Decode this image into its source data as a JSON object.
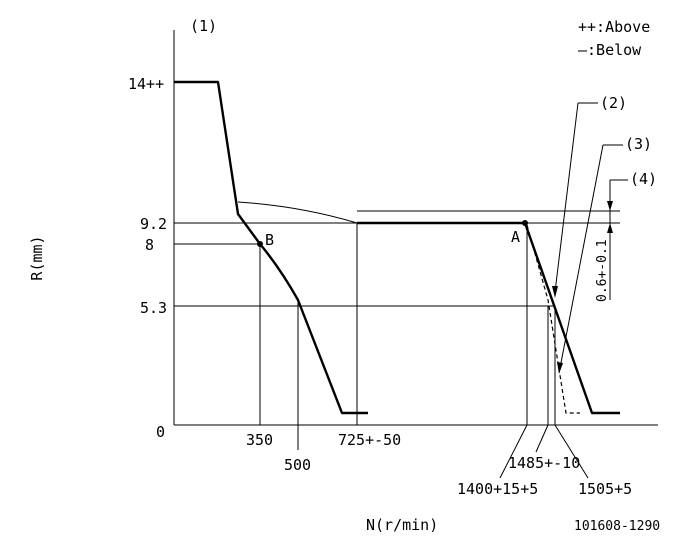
{
  "figure": {
    "ref_main": "(1)",
    "legend": {
      "above": "++:Above",
      "below": "—:Below"
    },
    "ylabel": "R(mm)",
    "xlabel": "N(r/min)",
    "code": "101608-1290"
  },
  "y_ticks": [
    "14++",
    "9.2",
    "8",
    "5.3",
    "0"
  ],
  "x_ticks": [
    "350",
    "500",
    "725+-50",
    "1400+15+5",
    "1485+-10",
    "1505+5"
  ],
  "points": {
    "a": "A",
    "b": "B"
  },
  "callouts": {
    "c2": "(2)",
    "c3": "(3)",
    "c4": "(4)"
  },
  "tolerance": "0.6+-0.1",
  "chart_data": {
    "type": "line",
    "xlabel": "N(r/min)",
    "ylabel": "R(mm)",
    "series": [
      {
        "points": [
          [
            0,
            14
          ],
          [
            150,
            14
          ],
          [
            225,
            9.6
          ],
          [
            350,
            8
          ],
          [
            450,
            6.2
          ],
          [
            600,
            0.4
          ],
          [
            725,
            0.4
          ]
        ]
      },
      {
        "points": [
          [
            225,
            9.6
          ],
          [
            725,
            9.2
          ],
          [
            1400,
            9.2
          ],
          [
            1505,
            5.3
          ],
          [
            1580,
            0.4
          ],
          [
            1680,
            0.4
          ]
        ]
      },
      {
        "points": [
          [
            1400,
            9.2
          ],
          [
            1485,
            5.3
          ],
          [
            1550,
            0.4
          ]
        ]
      }
    ]
  }
}
